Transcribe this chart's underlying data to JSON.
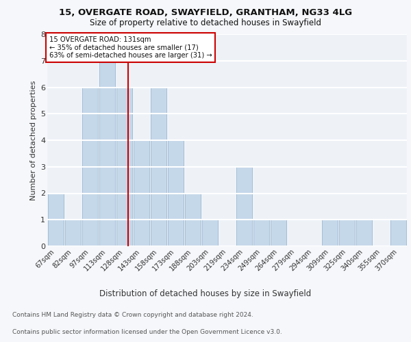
{
  "title1": "15, OVERGATE ROAD, SWAYFIELD, GRANTHAM, NG33 4LG",
  "title2": "Size of property relative to detached houses in Swayfield",
  "xlabel": "Distribution of detached houses by size in Swayfield",
  "ylabel": "Number of detached properties",
  "footer1": "Contains HM Land Registry data © Crown copyright and database right 2024.",
  "footer2": "Contains public sector information licensed under the Open Government Licence v3.0.",
  "bin_labels": [
    "67sqm",
    "82sqm",
    "97sqm",
    "113sqm",
    "128sqm",
    "143sqm",
    "158sqm",
    "173sqm",
    "188sqm",
    "203sqm",
    "219sqm",
    "234sqm",
    "249sqm",
    "264sqm",
    "279sqm",
    "294sqm",
    "309sqm",
    "325sqm",
    "340sqm",
    "355sqm",
    "370sqm"
  ],
  "bar_heights": [
    2,
    1,
    6,
    7,
    6,
    4,
    6,
    4,
    2,
    1,
    0,
    3,
    1,
    1,
    0,
    0,
    1,
    1,
    1,
    0,
    1
  ],
  "bar_color": "#c5d8ea",
  "bar_edge_color": "#9bb8d0",
  "property_line_label": "15 OVERGATE ROAD: 131sqm",
  "annotation_line1": "← 35% of detached houses are smaller (17)",
  "annotation_line2": "63% of semi-detached houses are larger (31) →",
  "annotation_box_color": "#ffffff",
  "annotation_box_edge": "#cc0000",
  "vline_color": "#cc0000",
  "vline_x": 4.2,
  "ylim": [
    0,
    8
  ],
  "yticks": [
    0,
    1,
    2,
    3,
    4,
    5,
    6,
    7,
    8
  ],
  "bg_color": "#eef2f7",
  "grid_color": "#ffffff",
  "fig_bg": "#f5f7fa"
}
